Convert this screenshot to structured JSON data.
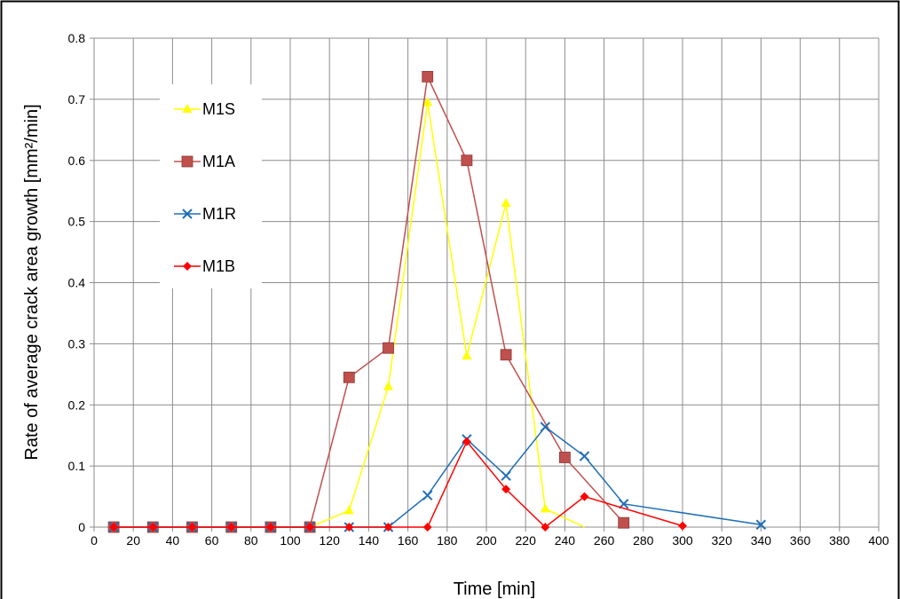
{
  "chart_data": {
    "type": "line",
    "title": "",
    "xlabel": "Time [min]",
    "ylabel": "Rate of average crack area growth  [mm²/min]",
    "xlim": [
      0,
      400
    ],
    "ylim": [
      0,
      0.8
    ],
    "x_ticks": [
      "0",
      "20",
      "40",
      "60",
      "80",
      "100",
      "120",
      "140",
      "160",
      "180",
      "200",
      "220",
      "240",
      "260",
      "280",
      "300",
      "320",
      "340",
      "360",
      "380",
      "400"
    ],
    "y_ticks": [
      "0",
      "0.1",
      "0.2",
      "0.3",
      "0.4",
      "0.5",
      "0.6",
      "0.7",
      "0.8"
    ],
    "grid": true,
    "legend_position": "upper-left",
    "series": [
      {
        "name": "M1S",
        "color": "#ffff00",
        "marker": "triangle",
        "points": [
          [
            10,
            0
          ],
          [
            30,
            0
          ],
          [
            50,
            0
          ],
          [
            70,
            0
          ],
          [
            90,
            0
          ],
          [
            110,
            0
          ],
          [
            130,
            0.027
          ],
          [
            150,
            0.23
          ],
          [
            170,
            0.695
          ],
          [
            190,
            0.28
          ],
          [
            210,
            0.53
          ],
          [
            230,
            0.03
          ],
          [
            250,
            0
          ]
        ]
      },
      {
        "name": "M1A",
        "color": "#c0504d",
        "marker": "square",
        "points": [
          [
            10,
            0
          ],
          [
            30,
            0
          ],
          [
            50,
            0
          ],
          [
            70,
            0
          ],
          [
            90,
            0
          ],
          [
            110,
            0
          ],
          [
            130,
            0.245
          ],
          [
            150,
            0.293
          ],
          [
            170,
            0.737
          ],
          [
            190,
            0.6
          ],
          [
            210,
            0.282
          ],
          [
            240,
            0.114
          ],
          [
            270,
            0.007
          ]
        ]
      },
      {
        "name": "M1R",
        "color": "#1f6fb5",
        "marker": "x",
        "points": [
          [
            10,
            0
          ],
          [
            30,
            0
          ],
          [
            50,
            0
          ],
          [
            70,
            0
          ],
          [
            90,
            0
          ],
          [
            110,
            0
          ],
          [
            130,
            0
          ],
          [
            150,
            0
          ],
          [
            170,
            0.052
          ],
          [
            190,
            0.144
          ],
          [
            210,
            0.084
          ],
          [
            230,
            0.164
          ],
          [
            250,
            0.116
          ],
          [
            270,
            0.038
          ],
          [
            340,
            0.004
          ]
        ]
      },
      {
        "name": "M1B",
        "color": "#ff0000",
        "marker": "diamond",
        "points": [
          [
            10,
            0
          ],
          [
            30,
            0
          ],
          [
            50,
            0
          ],
          [
            70,
            0
          ],
          [
            90,
            0
          ],
          [
            110,
            0
          ],
          [
            130,
            0
          ],
          [
            150,
            0
          ],
          [
            170,
            0
          ],
          [
            190,
            0.14
          ],
          [
            210,
            0.062
          ],
          [
            230,
            0
          ],
          [
            250,
            0.05
          ],
          [
            300,
            0.002
          ]
        ]
      }
    ]
  }
}
